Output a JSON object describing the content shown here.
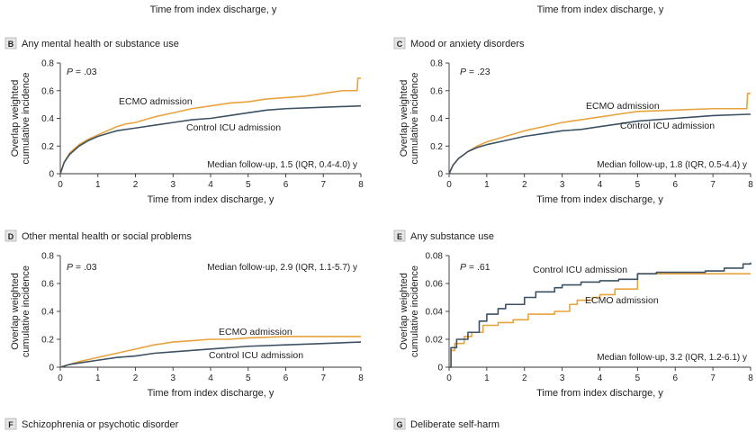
{
  "top_xlabel": "Time from index discharge, y",
  "bottom_panels": [
    {
      "letter": "F",
      "title": "Schizophrenia or psychotic disorder"
    },
    {
      "letter": "G",
      "title": "Deliberate self-harm"
    }
  ],
  "colors": {
    "ecmo": "#E8A33D",
    "control": "#3C5264",
    "axis": "#333333"
  },
  "chart_data": [
    {
      "type": "line",
      "letter": "B",
      "title": "Any mental health or substance use",
      "xlabel": "Time from index discharge, y",
      "ylabel": [
        "Overlap weighted",
        "cumulative incidence"
      ],
      "xlim": [
        0,
        8
      ],
      "ylim": [
        0,
        0.8
      ],
      "xticks": [
        "0",
        "1",
        "2",
        "3",
        "4",
        "5",
        "6",
        "7",
        "8"
      ],
      "yticks": [
        "0",
        "0.2",
        "0.4",
        "0.6",
        "0.8"
      ],
      "p_value": "P = .03",
      "followup": "Median follow-up, 1.5 (IQR, 0.4-4.0) y",
      "series": [
        {
          "name": "ECMO admission",
          "key": "ecmo",
          "x": [
            0,
            0.1,
            0.25,
            0.5,
            0.75,
            1,
            1.25,
            1.5,
            1.75,
            2,
            2.25,
            2.5,
            3,
            3.5,
            4,
            4.5,
            5,
            5.5,
            6,
            6.5,
            7,
            7.5,
            7.9,
            7.92,
            8
          ],
          "y": [
            0,
            0.08,
            0.15,
            0.21,
            0.25,
            0.28,
            0.31,
            0.34,
            0.36,
            0.37,
            0.39,
            0.41,
            0.44,
            0.47,
            0.49,
            0.51,
            0.52,
            0.54,
            0.55,
            0.56,
            0.58,
            0.6,
            0.6,
            0.69,
            0.69
          ]
        },
        {
          "name": "Control ICU admission",
          "key": "control",
          "x": [
            0,
            0.1,
            0.25,
            0.5,
            0.75,
            1,
            1.5,
            2,
            2.5,
            3,
            3.5,
            4,
            4.5,
            5,
            5.5,
            6,
            7,
            8
          ],
          "y": [
            0,
            0.08,
            0.14,
            0.2,
            0.24,
            0.27,
            0.31,
            0.33,
            0.35,
            0.37,
            0.39,
            0.4,
            0.42,
            0.44,
            0.46,
            0.47,
            0.48,
            0.49
          ]
        }
      ]
    },
    {
      "type": "line",
      "letter": "C",
      "title": "Mood or anxiety disorders",
      "xlabel": "Time from index discharge, y",
      "ylabel": [
        "Overlap weighted",
        "cumulative incidence"
      ],
      "xlim": [
        0,
        8
      ],
      "ylim": [
        0,
        0.8
      ],
      "xticks": [
        "0",
        "1",
        "2",
        "3",
        "4",
        "5",
        "6",
        "7",
        "8"
      ],
      "yticks": [
        "0",
        "0.2",
        "0.4",
        "0.6",
        "0.8"
      ],
      "p_value": "P = .23",
      "followup": "Median follow-up, 1.8 (IQR, 0.5-4.4) y",
      "series": [
        {
          "name": "ECMO admission",
          "key": "ecmo",
          "x": [
            0,
            0.1,
            0.25,
            0.5,
            0.75,
            1,
            1.5,
            2,
            2.5,
            3,
            3.5,
            4,
            4.5,
            5,
            6,
            7,
            7.9,
            7.92,
            8
          ],
          "y": [
            0,
            0.06,
            0.11,
            0.16,
            0.2,
            0.23,
            0.27,
            0.31,
            0.34,
            0.37,
            0.39,
            0.41,
            0.43,
            0.45,
            0.46,
            0.47,
            0.47,
            0.58,
            0.58
          ]
        },
        {
          "name": "Control ICU admission",
          "key": "control",
          "x": [
            0,
            0.1,
            0.25,
            0.5,
            0.75,
            1,
            1.5,
            2,
            2.5,
            3,
            3.5,
            4,
            4.5,
            5,
            6,
            7,
            8
          ],
          "y": [
            0,
            0.06,
            0.11,
            0.16,
            0.19,
            0.21,
            0.24,
            0.27,
            0.29,
            0.31,
            0.32,
            0.34,
            0.36,
            0.38,
            0.4,
            0.42,
            0.43
          ]
        }
      ]
    },
    {
      "type": "line",
      "letter": "D",
      "title": "Other mental health or social problems",
      "xlabel": "Time from index discharge, y",
      "ylabel": [
        "Overlap weighted",
        "cumulative incidence"
      ],
      "xlim": [
        0,
        8
      ],
      "ylim": [
        0,
        0.8
      ],
      "xticks": [
        "0",
        "1",
        "2",
        "3",
        "4",
        "5",
        "6",
        "7",
        "8"
      ],
      "yticks": [
        "0",
        "0.2",
        "0.4",
        "0.6",
        "0.8"
      ],
      "p_value": "P = .03",
      "followup": "Median follow-up, 2.9 (IQR, 1.1-5.7) y",
      "series": [
        {
          "name": "ECMO admission",
          "key": "ecmo",
          "x": [
            0,
            0.25,
            0.5,
            1,
            1.5,
            2,
            2.5,
            3,
            3.5,
            4,
            4.5,
            5,
            6,
            7,
            8
          ],
          "y": [
            0,
            0.02,
            0.04,
            0.07,
            0.1,
            0.13,
            0.16,
            0.18,
            0.19,
            0.2,
            0.2,
            0.21,
            0.22,
            0.22,
            0.22
          ]
        },
        {
          "name": "Control ICU admission",
          "key": "control",
          "x": [
            0,
            0.25,
            0.5,
            1,
            1.5,
            2,
            2.5,
            3,
            4,
            5,
            6,
            7,
            8
          ],
          "y": [
            0,
            0.02,
            0.03,
            0.05,
            0.07,
            0.08,
            0.1,
            0.11,
            0.13,
            0.15,
            0.16,
            0.17,
            0.18
          ]
        }
      ]
    },
    {
      "type": "line",
      "letter": "E",
      "title": "Any substance use",
      "xlabel": "Time from index discharge, y",
      "ylabel": [
        "Overlap weighted",
        "cumulative incidence"
      ],
      "xlim": [
        0,
        8
      ],
      "ylim": [
        0,
        0.08
      ],
      "xticks": [
        "0",
        "1",
        "2",
        "3",
        "4",
        "5",
        "6",
        "7",
        "8"
      ],
      "yticks": [
        "0",
        "0.02",
        "0.04",
        "0.06",
        "0.08"
      ],
      "p_value": "P = .61",
      "followup": "Median follow-up, 3.2 (IQR, 1.2-6.1) y",
      "series": [
        {
          "name": "ECMO admission",
          "key": "ecmo",
          "step": true,
          "x": [
            0,
            0.05,
            0.15,
            0.4,
            0.6,
            0.9,
            1.3,
            1.7,
            2.1,
            2.5,
            2.8,
            3.2,
            3.4,
            3.8,
            4.0,
            4.4,
            5.0,
            5.5,
            6.0,
            7.0,
            8.0
          ],
          "y": [
            0,
            0.012,
            0.017,
            0.022,
            0.025,
            0.03,
            0.032,
            0.034,
            0.038,
            0.038,
            0.04,
            0.045,
            0.048,
            0.05,
            0.052,
            0.056,
            0.067,
            0.067,
            0.067,
            0.067,
            0.067
          ]
        },
        {
          "name": "Control ICU admission",
          "key": "control",
          "step": true,
          "x": [
            0,
            0.05,
            0.2,
            0.5,
            0.8,
            1.0,
            1.3,
            1.5,
            2.0,
            2.3,
            2.8,
            3.0,
            3.5,
            4.0,
            4.5,
            5.0,
            5.5,
            6.0,
            6.8,
            7.3,
            7.8,
            8.0
          ],
          "y": [
            0,
            0.014,
            0.02,
            0.025,
            0.033,
            0.038,
            0.042,
            0.045,
            0.05,
            0.054,
            0.057,
            0.059,
            0.061,
            0.062,
            0.063,
            0.067,
            0.068,
            0.068,
            0.069,
            0.071,
            0.074,
            0.075
          ]
        }
      ]
    }
  ]
}
